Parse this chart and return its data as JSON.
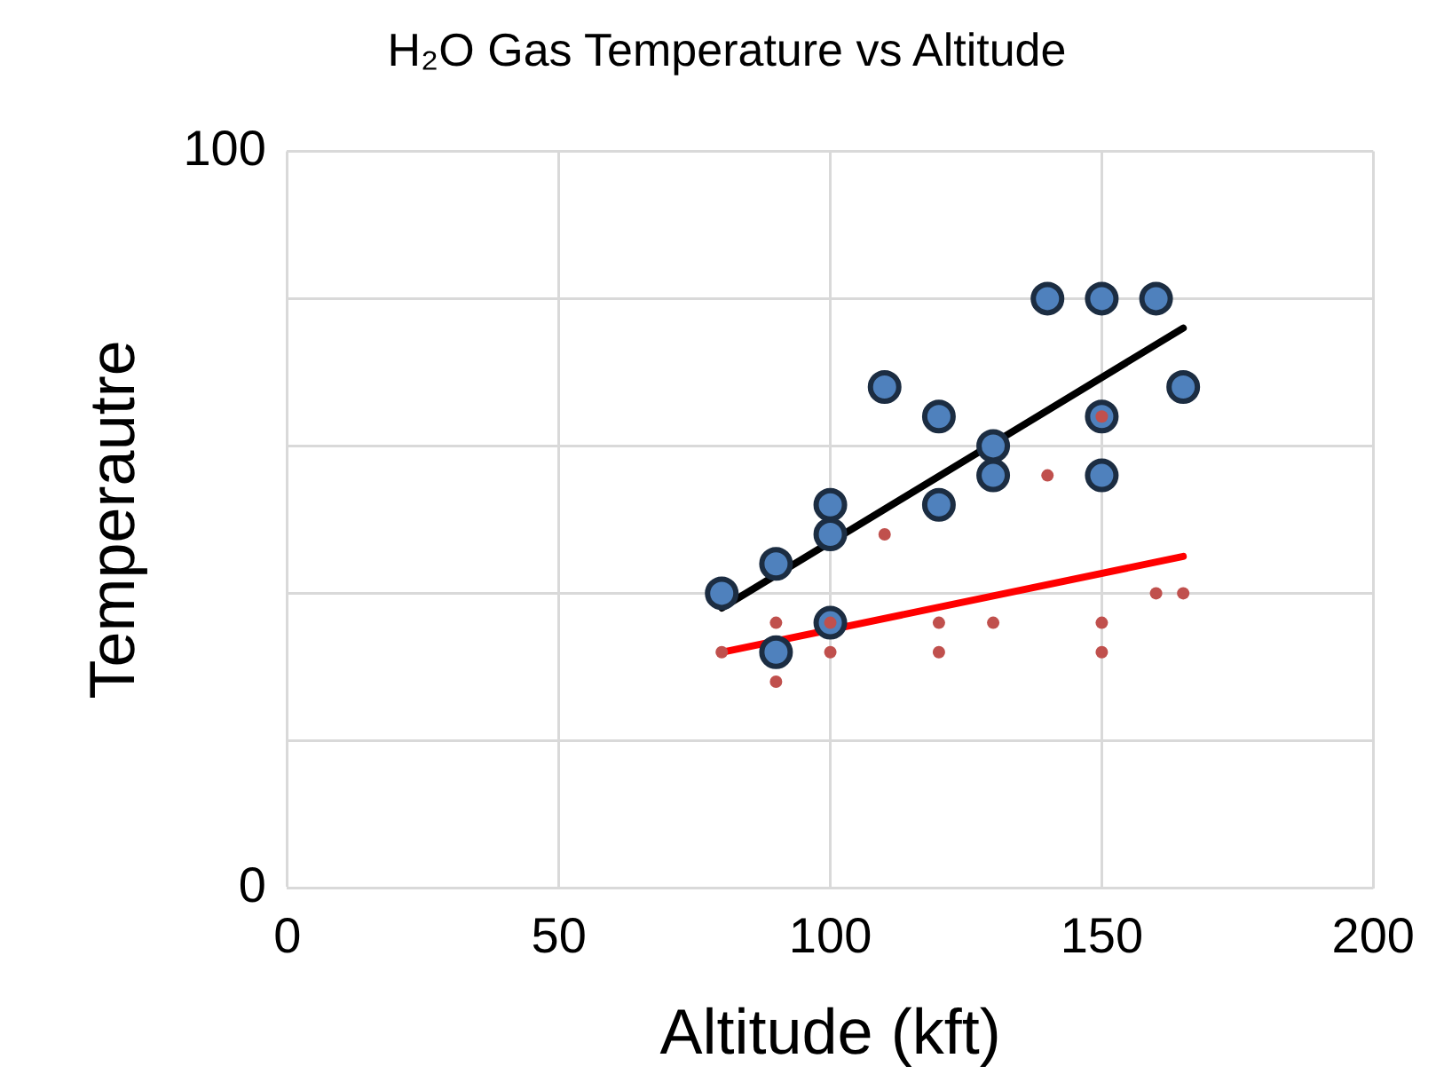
{
  "chart_data": {
    "type": "scatter",
    "title": "H₂O Gas Temperature vs Altitude",
    "xlabel": "Altitude (kft)",
    "ylabel": "Temperautre",
    "xlim": [
      0,
      200
    ],
    "xticks": [
      0,
      50,
      100,
      150,
      200
    ],
    "ylim": [
      0,
      100
    ],
    "yticks": [
      0,
      {
        "value": 20,
        "label": null
      },
      {
        "value": 40,
        "label": null
      },
      {
        "value": 60,
        "label": null
      },
      {
        "value": 80,
        "label": null
      },
      100
    ],
    "grid": true,
    "legend": false,
    "series": [
      {
        "color": "#4f81bd",
        "marker": "circle",
        "x": [
          80,
          90,
          90,
          100,
          100,
          100,
          110,
          120,
          120,
          130,
          130,
          140,
          150,
          150,
          150,
          160,
          165
        ],
        "values": [
          40,
          44,
          32,
          52,
          48,
          36,
          68,
          64,
          52,
          60,
          56,
          80,
          80,
          64,
          56,
          80,
          68
        ]
      },
      {
        "color": "#c0504d",
        "marker": "circle",
        "x": [
          80,
          90,
          90,
          100,
          100,
          110,
          120,
          120,
          130,
          140,
          150,
          150,
          150,
          160,
          165
        ],
        "values": [
          32,
          36,
          28,
          36,
          32,
          48,
          36,
          32,
          36,
          56,
          64,
          36,
          32,
          40,
          40
        ]
      },
      {
        "type": "line",
        "color": "#000000",
        "marker": "none",
        "x": [
          80,
          165
        ],
        "values": [
          38,
          76
        ]
      },
      {
        "type": "line",
        "color": "#ff0000",
        "marker": "none",
        "x": [
          80,
          165
        ],
        "values": [
          32,
          45
        ]
      }
    ]
  }
}
